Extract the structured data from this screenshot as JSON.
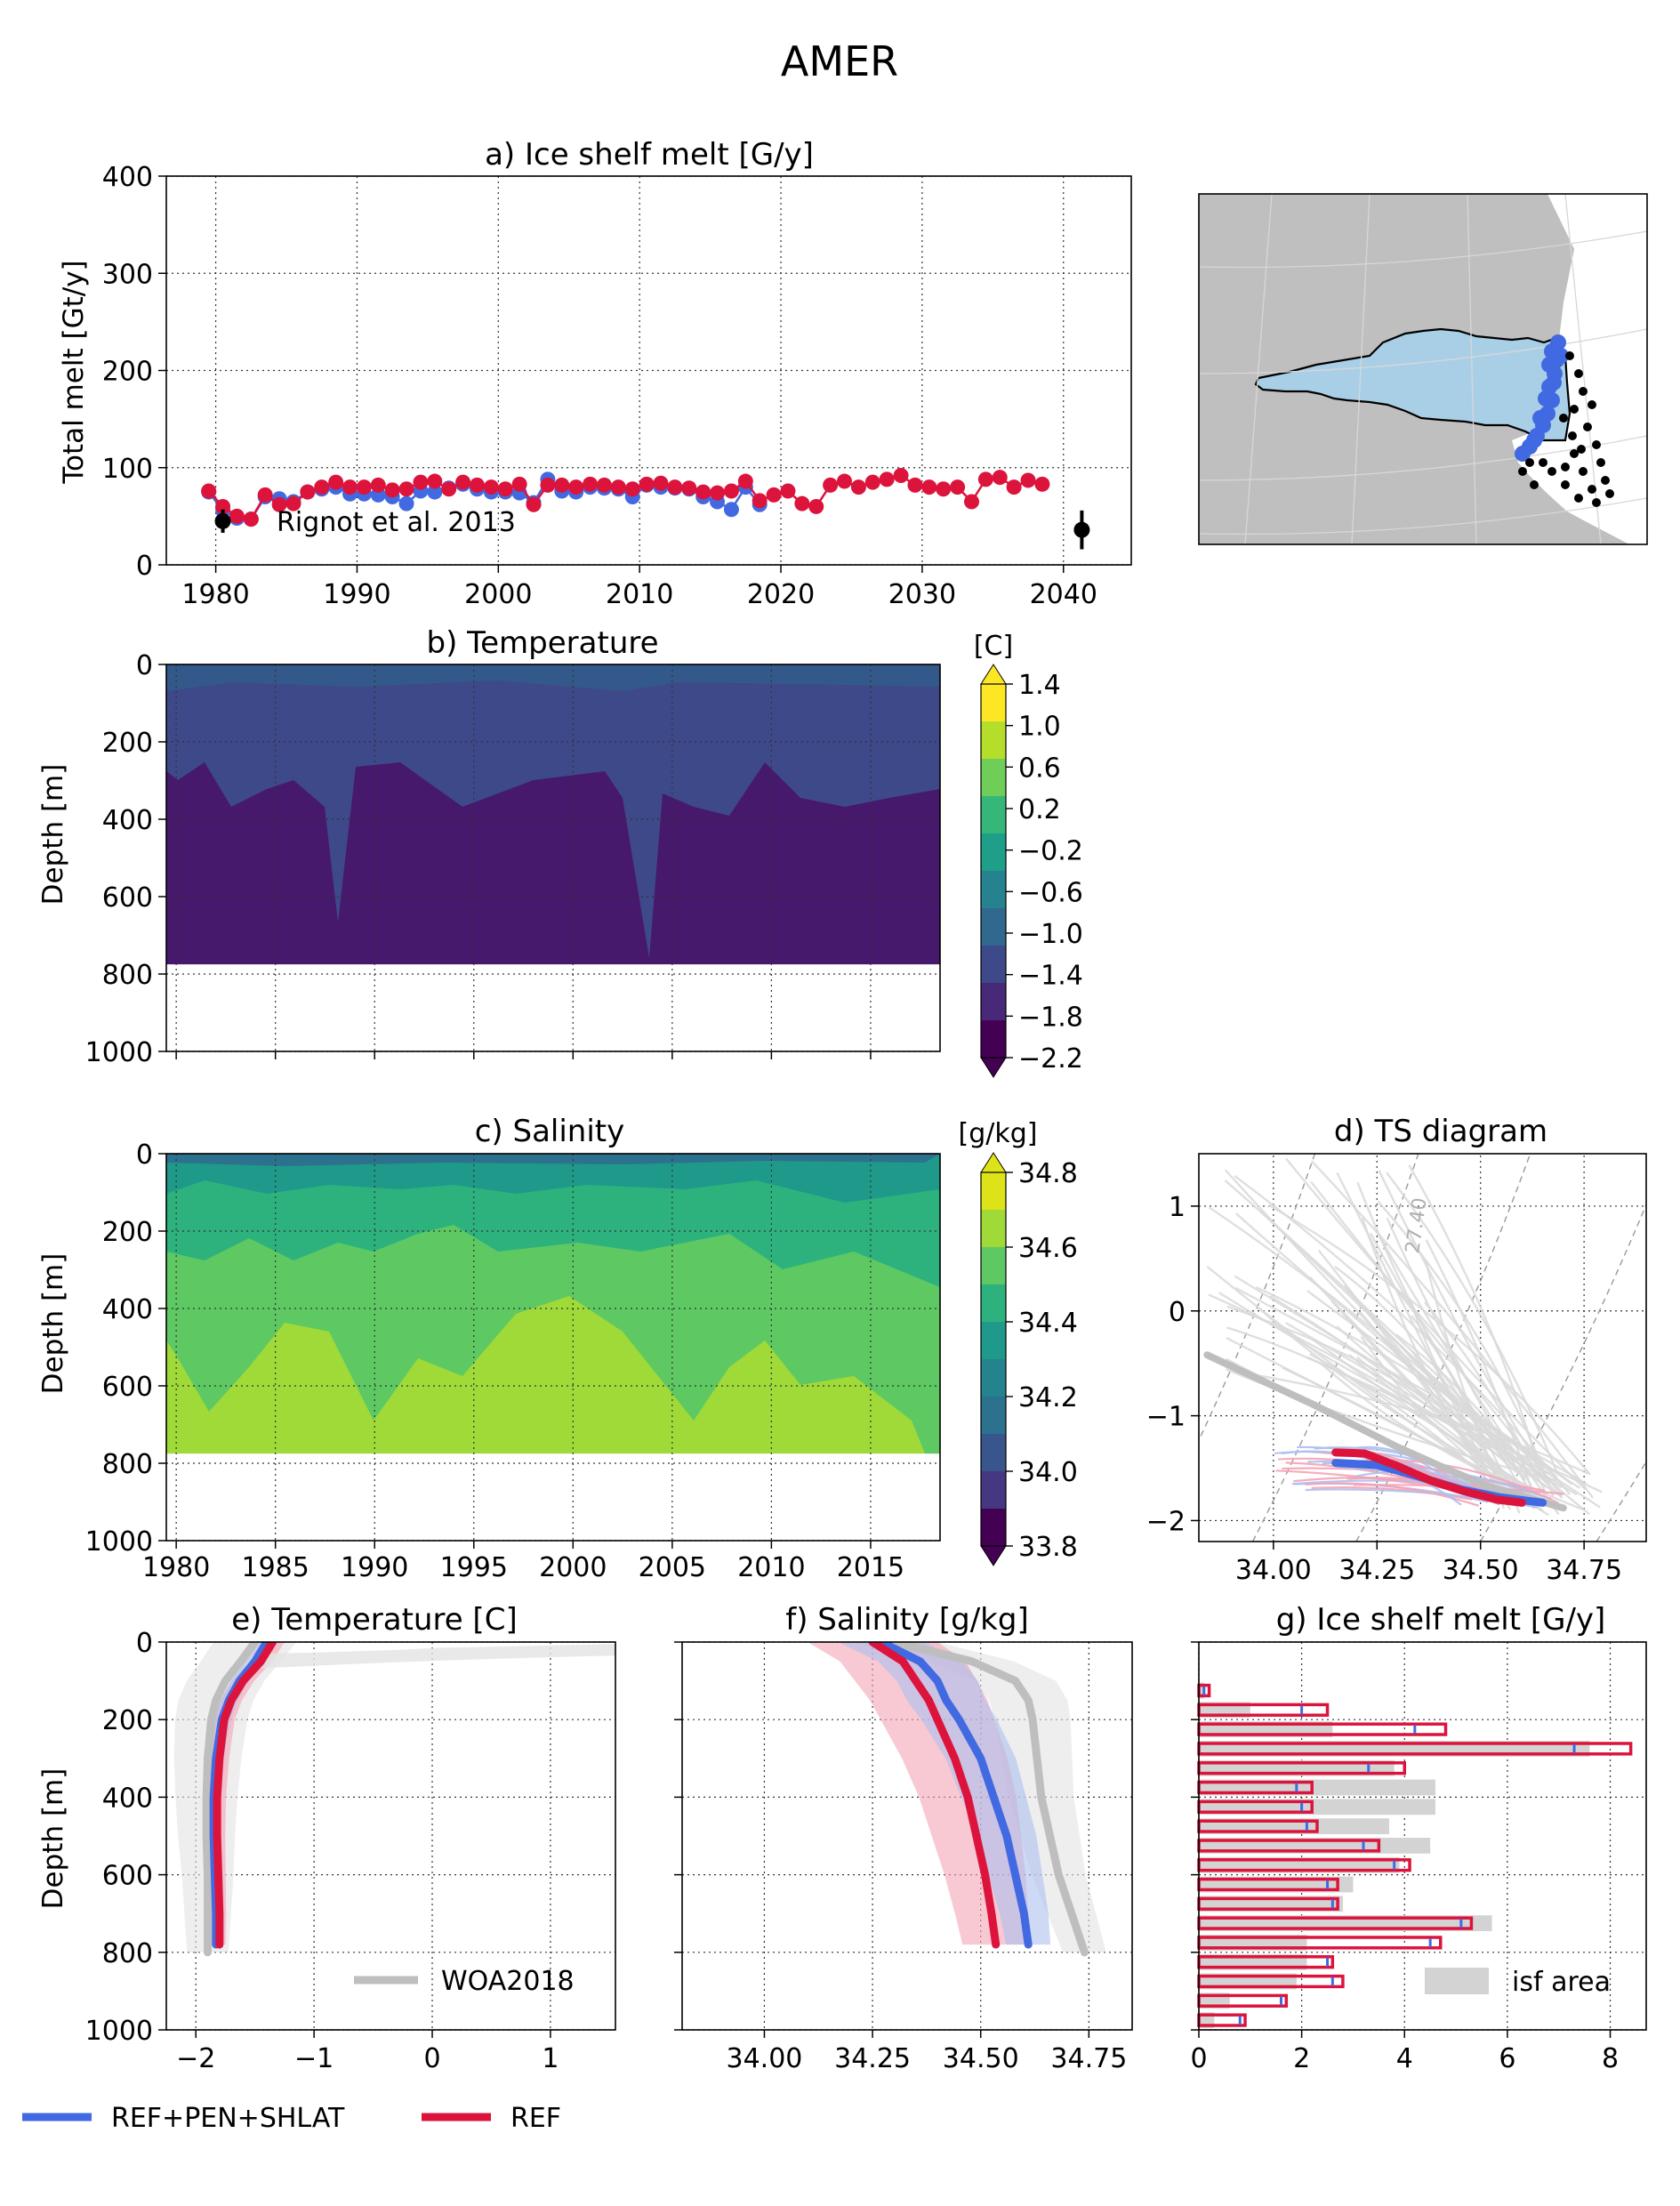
{
  "figure": {
    "title": "AMER",
    "legend": [
      {
        "label": "REF+PEN+SHLAT",
        "color": "#4169e1"
      },
      {
        "label": "REF",
        "color": "#dc143c"
      }
    ]
  },
  "colors": {
    "blue": "#4169e1",
    "red": "#dc143c",
    "gray": "#bebebe",
    "land": "#bfbfbf",
    "shelf": "#a9cfe6"
  },
  "chart_data": [
    {
      "id": "a",
      "type": "scatter",
      "title": "a) Ice shelf melt [G/y]",
      "ylabel": "Total melt [Gt/y]",
      "xlim": [
        1976.5,
        2044.8
      ],
      "ylim": [
        0,
        400
      ],
      "xticks": [
        1980,
        1990,
        2000,
        2010,
        2020,
        2030,
        2040
      ],
      "yticks": [
        0,
        100,
        200,
        300,
        400
      ],
      "grid": true,
      "annotation": "Rignot et al. 2013",
      "observations": [
        {
          "x": 1980.5,
          "y": 45,
          "err": 12
        },
        {
          "x": 2041.3,
          "y": 36,
          "err": 20
        }
      ],
      "series": [
        {
          "name": "REF+PEN+SHLAT",
          "color": "#4169e1",
          "x": [
            1979.5,
            1980.5,
            1981.5,
            1982.5,
            1983.5,
            1984.5,
            1985.5,
            1986.5,
            1987.5,
            1988.5,
            1989.5,
            1990.5,
            1991.5,
            1992.5,
            1993.5,
            1994.5,
            1995.5,
            1996.5,
            1997.5,
            1998.5,
            1999.5,
            2000.5,
            2001.5,
            2002.5,
            2003.5,
            2004.5,
            2005.5,
            2006.5,
            2007.5,
            2008.5,
            2009.5,
            2010.5,
            2011.5,
            2012.5,
            2013.5,
            2014.5,
            2015.5,
            2016.5,
            2017.5,
            2018.5
          ],
          "y": [
            75,
            56,
            48,
            47,
            70,
            68,
            65,
            75,
            78,
            80,
            73,
            73,
            72,
            70,
            63,
            76,
            75,
            79,
            83,
            78,
            75,
            75,
            74,
            64,
            88,
            76,
            75,
            80,
            79,
            78,
            70,
            82,
            80,
            79,
            78,
            70,
            65,
            57,
            80,
            62
          ]
        },
        {
          "name": "REF",
          "color": "#dc143c",
          "x": [
            1979.5,
            1980.5,
            1981.5,
            1982.5,
            1983.5,
            1984.5,
            1985.5,
            1986.5,
            1987.5,
            1988.5,
            1989.5,
            1990.5,
            1991.5,
            1992.5,
            1993.5,
            1994.5,
            1995.5,
            1996.5,
            1997.5,
            1998.5,
            1999.5,
            2000.5,
            2001.5,
            2002.5,
            2003.5,
            2004.5,
            2005.5,
            2006.5,
            2007.5,
            2008.5,
            2009.5,
            2010.5,
            2011.5,
            2012.5,
            2013.5,
            2014.5,
            2015.5,
            2016.5,
            2017.5,
            2018.5,
            2019.5,
            2020.5,
            2021.5,
            2022.5,
            2023.5,
            2024.5,
            2025.5,
            2026.5,
            2027.5,
            2028.5,
            2029.5,
            2030.5,
            2031.5,
            2032.5,
            2033.5,
            2034.5,
            2035.5,
            2036.5,
            2037.5,
            2038.5
          ],
          "y": [
            76,
            60,
            50,
            47,
            72,
            62,
            63,
            75,
            80,
            85,
            80,
            80,
            82,
            77,
            78,
            85,
            86,
            78,
            85,
            82,
            80,
            78,
            83,
            62,
            82,
            82,
            80,
            83,
            82,
            80,
            78,
            83,
            84,
            80,
            79,
            75,
            74,
            76,
            86,
            66,
            72,
            76,
            63,
            60,
            82,
            86,
            80,
            85,
            88,
            92,
            82,
            80,
            78,
            80,
            65,
            88,
            90,
            80,
            87,
            83
          ]
        }
      ]
    },
    {
      "id": "b",
      "type": "heatmap",
      "title": "b) Temperature",
      "ylabel": "Depth [m]",
      "xlim": [
        1979.5,
        2018.5
      ],
      "ylim": [
        0,
        1000
      ],
      "ymax_data": 775,
      "yticks": [
        0,
        200,
        400,
        600,
        800,
        1000
      ],
      "colorbar": {
        "unit": "[C]",
        "ticks": [
          "1.4",
          "1.0",
          "0.6",
          "0.2",
          "−0.2",
          "−0.6",
          "−1.0",
          "−1.4",
          "−1.8",
          "−2.2"
        ],
        "colors": [
          "#fde725",
          "#b5de2b",
          "#6ece58",
          "#35b779",
          "#1f9e89",
          "#26828e",
          "#31688e",
          "#3e4989",
          "#482878",
          "#440154"
        ]
      },
      "description_layers": [
        {
          "level": "-1.8 to -1.4",
          "color": "#3e4989"
        },
        {
          "level": "-2.2 to -1.8",
          "color": "#46196c"
        },
        {
          "level": "-1.4 to -1.0",
          "color": "#33598b"
        }
      ]
    },
    {
      "id": "c",
      "type": "heatmap",
      "title": "c) Salinity",
      "ylabel": "Depth [m]",
      "xlim": [
        1979.5,
        2018.5
      ],
      "ylim": [
        0,
        1000
      ],
      "ymax_data": 775,
      "xticks": [
        1980,
        1985,
        1990,
        1995,
        2000,
        2005,
        2010,
        2015
      ],
      "yticks": [
        0,
        200,
        400,
        600,
        800,
        1000
      ],
      "colorbar": {
        "unit": "[g/kg]",
        "ticks": [
          "34.8",
          "34.6",
          "34.4",
          "34.2",
          "34.0",
          "33.8"
        ],
        "colors": [
          "#dde318",
          "#a0da39",
          "#5ec962",
          "#2db27d",
          "#1f998a",
          "#25838e",
          "#2c728e",
          "#39568c",
          "#453781",
          "#440154"
        ]
      }
    },
    {
      "id": "d",
      "type": "line",
      "title": "d) TS diagram",
      "xlim": [
        33.82,
        34.9
      ],
      "ylim": [
        -2.2,
        1.5
      ],
      "xticks": [
        "34.00",
        "34.25",
        "34.50",
        "34.75"
      ],
      "yticks": [
        "1",
        "0",
        "−1",
        "−2"
      ],
      "isopycnal_label": "27.40",
      "series": [
        {
          "name": "REF",
          "color": "#dc143c",
          "x": [
            34.15,
            34.22,
            34.3,
            34.38,
            34.46,
            34.54,
            34.6
          ],
          "y": [
            -1.35,
            -1.36,
            -1.48,
            -1.62,
            -1.72,
            -1.8,
            -1.83
          ]
        },
        {
          "name": "REF+PEN+SHLAT",
          "color": "#4169e1",
          "x": [
            34.15,
            34.25,
            34.35,
            34.45,
            34.55,
            34.65
          ],
          "y": [
            -1.45,
            -1.47,
            -1.58,
            -1.7,
            -1.78,
            -1.83
          ]
        },
        {
          "name": "WOA2018",
          "color": "#bebebe",
          "x": [
            33.84,
            34.1,
            34.3,
            34.5,
            34.7
          ],
          "y": [
            -0.42,
            -0.9,
            -1.3,
            -1.65,
            -1.88
          ]
        }
      ]
    },
    {
      "id": "e",
      "type": "line",
      "title": "e) Temperature [C]",
      "ylabel": "Depth [m]",
      "xlim": [
        -2.25,
        1.55
      ],
      "ylim": [
        1000,
        0
      ],
      "xticks": [
        "−2",
        "−1",
        "0",
        "1"
      ],
      "yticks": [
        0,
        200,
        400,
        600,
        800,
        1000
      ],
      "legend": "WOA2018",
      "series": [
        {
          "name": "REF",
          "color": "#dc143c",
          "depth": [
            0,
            50,
            100,
            150,
            200,
            300,
            400,
            500,
            600,
            700,
            780
          ],
          "values": [
            -1.35,
            -1.45,
            -1.6,
            -1.7,
            -1.76,
            -1.8,
            -1.82,
            -1.82,
            -1.81,
            -1.8,
            -1.8
          ]
        },
        {
          "name": "REF+PEN+SHLAT",
          "color": "#4169e1",
          "depth": [
            0,
            50,
            100,
            150,
            200,
            300,
            400,
            500,
            600,
            700,
            780
          ],
          "values": [
            -1.4,
            -1.5,
            -1.63,
            -1.72,
            -1.78,
            -1.83,
            -1.85,
            -1.85,
            -1.84,
            -1.83,
            -1.83
          ]
        },
        {
          "name": "WOA2018",
          "color": "#bebebe",
          "depth": [
            0,
            50,
            100,
            150,
            200,
            300,
            400,
            500,
            600,
            700,
            800
          ],
          "values": [
            -1.5,
            -1.62,
            -1.75,
            -1.83,
            -1.87,
            -1.9,
            -1.91,
            -1.91,
            -1.9,
            -1.9,
            -1.9
          ]
        }
      ]
    },
    {
      "id": "f",
      "type": "line",
      "title": "f) Salinity [g/kg]",
      "xlim": [
        33.81,
        34.85
      ],
      "ylim": [
        1000,
        0
      ],
      "xticks": [
        "34.00",
        "34.25",
        "34.50",
        "34.75"
      ],
      "series": [
        {
          "name": "REF",
          "color": "#dc143c",
          "depth": [
            0,
            50,
            100,
            150,
            200,
            300,
            400,
            500,
            600,
            700,
            780
          ],
          "values": [
            34.25,
            34.32,
            34.35,
            34.38,
            34.4,
            34.44,
            34.47,
            34.49,
            34.51,
            34.525,
            34.535
          ]
        },
        {
          "name": "REF+PEN+SHLAT",
          "color": "#4169e1",
          "depth": [
            0,
            50,
            100,
            150,
            200,
            300,
            400,
            500,
            600,
            700,
            780
          ],
          "values": [
            34.27,
            34.36,
            34.4,
            34.42,
            34.45,
            34.5,
            34.53,
            34.56,
            34.58,
            34.6,
            34.61
          ]
        },
        {
          "name": "WOA2018",
          "color": "#bebebe",
          "depth": [
            0,
            50,
            100,
            150,
            200,
            300,
            400,
            500,
            600,
            700,
            800
          ],
          "values": [
            34.3,
            34.48,
            34.58,
            34.61,
            34.62,
            34.63,
            34.64,
            34.66,
            34.68,
            34.71,
            34.74
          ]
        }
      ]
    },
    {
      "id": "g",
      "type": "bar",
      "title": "g) Ice shelf melt [G/y]",
      "xlim": [
        0,
        8.7
      ],
      "ylim": [
        1000,
        0
      ],
      "xticks": [
        "0",
        "2",
        "4",
        "6",
        "8"
      ],
      "legend": "isf area",
      "bins_depth_top": [
        100,
        150,
        200,
        250,
        300,
        350,
        400,
        450,
        500,
        550,
        600,
        650,
        700,
        750,
        800,
        850,
        900,
        950
      ],
      "bins_depth_bottom": [
        150,
        200,
        250,
        300,
        350,
        400,
        450,
        500,
        550,
        600,
        650,
        700,
        750,
        800,
        850,
        900,
        950,
        1000
      ],
      "series": [
        {
          "name": "REF",
          "color": "#dc143c",
          "values": [
            0.2,
            2.5,
            4.8,
            8.4,
            4.0,
            2.2,
            2.2,
            2.3,
            3.5,
            4.1,
            2.7,
            2.7,
            5.3,
            4.7,
            2.6,
            2.8,
            1.7,
            0.9
          ]
        },
        {
          "name": "REF+PEN+SHLAT",
          "color": "#4169e1",
          "values": [
            0.1,
            2.0,
            4.2,
            7.3,
            3.3,
            1.9,
            2.0,
            2.1,
            3.2,
            3.8,
            2.5,
            2.6,
            5.1,
            4.5,
            2.5,
            2.6,
            1.6,
            0.8
          ]
        },
        {
          "name": "isf area",
          "color": "#d3d3d3",
          "values": [
            0.1,
            1.0,
            2.6,
            7.6,
            3.8,
            4.6,
            4.6,
            3.7,
            4.5,
            3.9,
            3.0,
            2.8,
            5.7,
            2.1,
            2.1,
            1.9,
            0.6,
            0.3
          ]
        }
      ]
    }
  ]
}
